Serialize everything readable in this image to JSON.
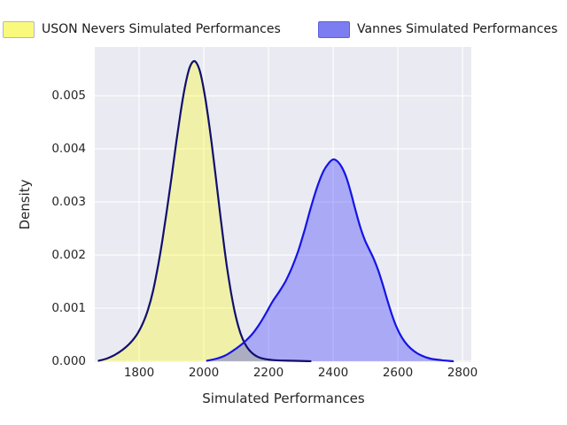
{
  "legend": {
    "items": [
      {
        "label": "USON Nevers Simulated Performances",
        "fill": "#f9f97e",
        "border": "#b4b4cc"
      },
      {
        "label": "Vannes Simulated Performances",
        "fill": "#7d7df2",
        "border": "#6060dc"
      }
    ]
  },
  "panel": {
    "background": "#eaeaf2",
    "gridline_color": "#ffffff"
  },
  "chart_data": {
    "type": "area",
    "subtype": "kde-density",
    "title": "",
    "xlabel": "Simulated Performances",
    "ylabel": "Density",
    "xlim": [
      1663,
      2827
    ],
    "ylim": [
      0,
      0.00592
    ],
    "grid": true,
    "legend_position": "top",
    "x_ticks": [
      1800,
      2000,
      2200,
      2400,
      2600,
      2800
    ],
    "x_tick_labels": [
      "1800",
      "2000",
      "2200",
      "2400",
      "2600",
      "2800"
    ],
    "y_ticks": [
      0,
      0.001,
      0.002,
      0.003,
      0.004,
      0.005
    ],
    "y_tick_labels": [
      "0.000",
      "0.001",
      "0.002",
      "0.003",
      "0.004",
      "0.005"
    ],
    "series": [
      {
        "id": "uson-nevers",
        "name": "USON Nevers Simulated Performances",
        "stroke": "#10106e",
        "fill": "rgba(255,255,0,0.30)",
        "peak": {
          "x": 1970,
          "density": 0.00565
        },
        "points": [
          [
            1675,
            1e-05
          ],
          [
            1700,
            5e-05
          ],
          [
            1725,
            0.00012
          ],
          [
            1750,
            0.00022
          ],
          [
            1775,
            0.00036
          ],
          [
            1795,
            0.00052
          ],
          [
            1812,
            0.00072
          ],
          [
            1828,
            0.00098
          ],
          [
            1843,
            0.00132
          ],
          [
            1858,
            0.00178
          ],
          [
            1872,
            0.00228
          ],
          [
            1886,
            0.00285
          ],
          [
            1900,
            0.00345
          ],
          [
            1914,
            0.00408
          ],
          [
            1928,
            0.00468
          ],
          [
            1942,
            0.00518
          ],
          [
            1955,
            0.00551
          ],
          [
            1966,
            0.00564
          ],
          [
            1976,
            0.00563
          ],
          [
            1988,
            0.00546
          ],
          [
            2000,
            0.00512
          ],
          [
            2012,
            0.00466
          ],
          [
            2024,
            0.00412
          ],
          [
            2036,
            0.00352
          ],
          [
            2048,
            0.0029
          ],
          [
            2060,
            0.0023
          ],
          [
            2072,
            0.00176
          ],
          [
            2084,
            0.0013
          ],
          [
            2096,
            0.00092
          ],
          [
            2108,
            0.00063
          ],
          [
            2120,
            0.00042
          ],
          [
            2134,
            0.00026
          ],
          [
            2150,
            0.00015
          ],
          [
            2168,
            8e-05
          ],
          [
            2190,
            4e-05
          ],
          [
            2220,
            2e-05
          ],
          [
            2270,
            1e-05
          ],
          [
            2330,
            0
          ]
        ]
      },
      {
        "id": "vannes",
        "name": "Vannes Simulated Performances",
        "stroke": "#1414e6",
        "fill": "rgba(0,0,255,0.28)",
        "peak": {
          "x": 2400,
          "density": 0.0038
        },
        "points": [
          [
            2010,
            1e-05
          ],
          [
            2040,
            5e-05
          ],
          [
            2070,
            0.00012
          ],
          [
            2100,
            0.00024
          ],
          [
            2125,
            0.00036
          ],
          [
            2148,
            0.0005
          ],
          [
            2170,
            0.00068
          ],
          [
            2192,
            0.0009
          ],
          [
            2212,
            0.00112
          ],
          [
            2232,
            0.0013
          ],
          [
            2252,
            0.0015
          ],
          [
            2272,
            0.00176
          ],
          [
            2292,
            0.00208
          ],
          [
            2312,
            0.00248
          ],
          [
            2332,
            0.00292
          ],
          [
            2352,
            0.00331
          ],
          [
            2370,
            0.00358
          ],
          [
            2386,
            0.00373
          ],
          [
            2400,
            0.0038
          ],
          [
            2414,
            0.00376
          ],
          [
            2428,
            0.00364
          ],
          [
            2442,
            0.00344
          ],
          [
            2456,
            0.00315
          ],
          [
            2470,
            0.00282
          ],
          [
            2484,
            0.00252
          ],
          [
            2498,
            0.00228
          ],
          [
            2512,
            0.0021
          ],
          [
            2526,
            0.00192
          ],
          [
            2540,
            0.0017
          ],
          [
            2554,
            0.00143
          ],
          [
            2568,
            0.00114
          ],
          [
            2582,
            0.00087
          ],
          [
            2596,
            0.00064
          ],
          [
            2612,
            0.00045
          ],
          [
            2630,
            0.0003
          ],
          [
            2650,
            0.00019
          ],
          [
            2672,
            0.00011
          ],
          [
            2700,
            5e-05
          ],
          [
            2735,
            2e-05
          ],
          [
            2770,
            0
          ]
        ]
      }
    ]
  }
}
